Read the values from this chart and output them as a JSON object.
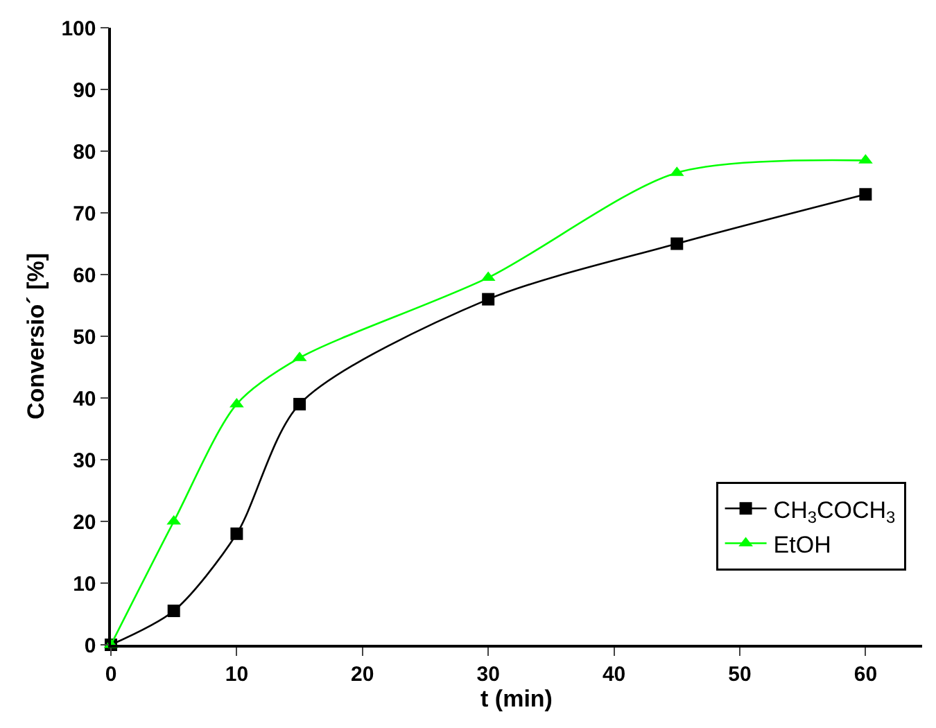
{
  "chart_data": {
    "type": "line",
    "xlabel": "t (min)",
    "ylabel": "Conversio´ [%]",
    "x": [
      0,
      5,
      10,
      15,
      30,
      45,
      60
    ],
    "series": [
      {
        "name": "CH$_{3}$COCH$_{3}$",
        "color": "#000000",
        "marker": "square",
        "values": [
          0,
          5.5,
          18,
          39,
          56,
          65,
          73
        ]
      },
      {
        "name": "EtOH",
        "color": "#00ff00",
        "marker": "triangle",
        "values": [
          0,
          20,
          39,
          46.5,
          59.5,
          76.5,
          78.5
        ]
      }
    ],
    "xlim": [
      0,
      64.5
    ],
    "xticks": [
      0,
      10,
      20,
      30,
      40,
      50,
      60
    ],
    "ylim": [
      0,
      100
    ],
    "yticks": [
      0,
      10,
      20,
      30,
      40,
      50,
      60,
      70,
      80,
      90,
      100
    ],
    "grid": false,
    "legend": "bottom right",
    "line_style": "solid"
  }
}
